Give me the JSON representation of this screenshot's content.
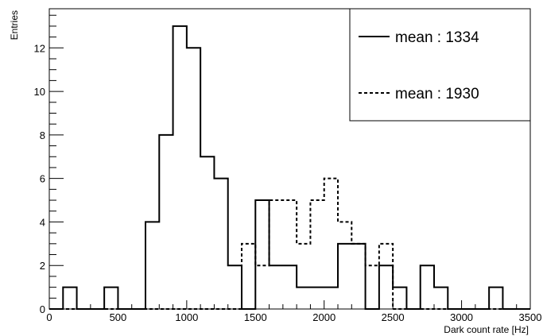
{
  "chart_data": {
    "type": "histogram",
    "xlabel": "Dark count rate [Hz]",
    "ylabel": "Entries",
    "xlim": [
      0,
      3500
    ],
    "ylim": [
      0,
      13.8
    ],
    "bin_width": 100,
    "x_ticks": [
      0,
      500,
      1000,
      1500,
      2000,
      2500,
      3000,
      3500
    ],
    "y_ticks": [
      0,
      2,
      4,
      6,
      8,
      10,
      12
    ],
    "grid": false,
    "legend_position": "top-right",
    "series": [
      {
        "name": "mean : 1334",
        "line_style": "solid",
        "bin_edges_start": 0,
        "counts": [
          0,
          1,
          0,
          0,
          1,
          0,
          0,
          4,
          8,
          13,
          12,
          7,
          6,
          2,
          0,
          5,
          2,
          2,
          1,
          1,
          1,
          3,
          3,
          0,
          2,
          1,
          0,
          2,
          1,
          0,
          0,
          0,
          1,
          0,
          0
        ]
      },
      {
        "name": "mean : 1930",
        "line_style": "dashed",
        "bin_edges_start": 0,
        "counts": [
          0,
          0,
          0,
          0,
          0,
          0,
          0,
          0,
          0,
          0,
          0,
          0,
          0,
          0,
          3,
          2,
          5,
          5,
          3,
          5,
          6,
          4,
          3,
          2,
          3,
          0,
          0,
          0,
          0,
          0,
          0,
          0,
          0,
          0,
          0
        ]
      }
    ]
  }
}
